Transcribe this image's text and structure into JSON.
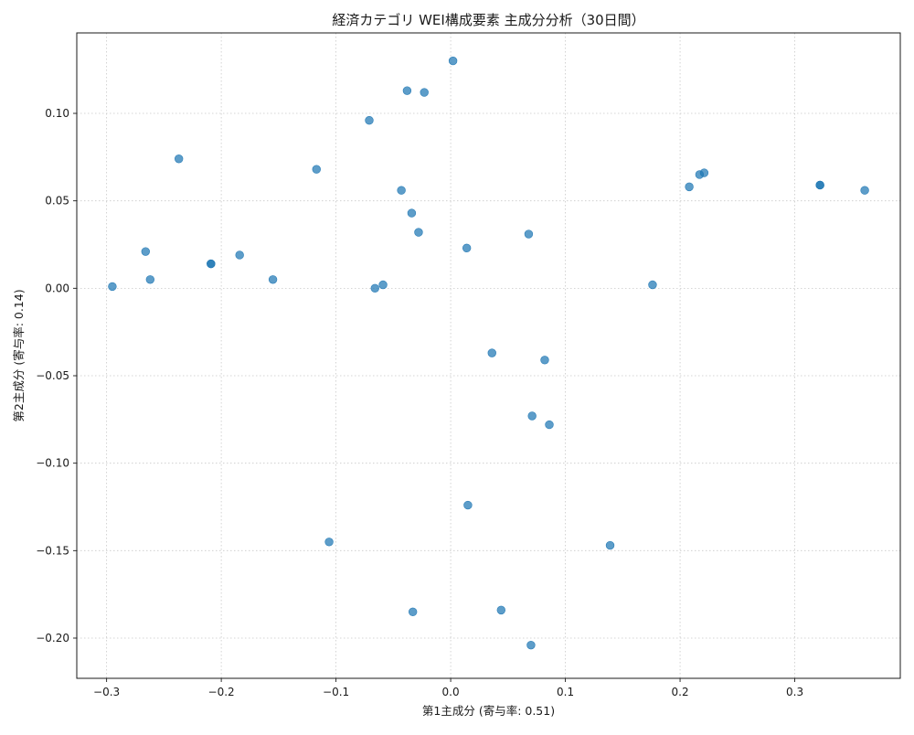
{
  "chart_data": {
    "type": "scatter",
    "title": "経済カテゴリ WEI構成要素 主成分分析（30日間）",
    "xlabel": "第1主成分 (寄与率: 0.51)",
    "ylabel": "第2主成分 (寄与率: 0.14)",
    "xlim": [
      -0.326,
      0.392
    ],
    "ylim": [
      -0.223,
      0.146
    ],
    "xticks": [
      -0.3,
      -0.2,
      -0.1,
      0.0,
      0.1,
      0.2,
      0.3
    ],
    "xtick_labels": [
      "−0.3",
      "−0.2",
      "−0.1",
      "0.0",
      "0.1",
      "0.2",
      "0.3"
    ],
    "yticks": [
      -0.2,
      -0.15,
      -0.1,
      -0.05,
      0.0,
      0.05,
      0.1
    ],
    "ytick_labels": [
      "−0.20",
      "−0.15",
      "−0.10",
      "−0.05",
      "0.00",
      "0.05",
      "0.10"
    ],
    "grid": true,
    "point_color": "#1f77b4",
    "points": [
      {
        "x": 0.002,
        "y": 0.13
      },
      {
        "x": -0.038,
        "y": 0.113
      },
      {
        "x": -0.023,
        "y": 0.112
      },
      {
        "x": -0.071,
        "y": 0.096
      },
      {
        "x": -0.237,
        "y": 0.074
      },
      {
        "x": -0.117,
        "y": 0.068
      },
      {
        "x": -0.043,
        "y": 0.056
      },
      {
        "x": -0.034,
        "y": 0.043
      },
      {
        "x": -0.028,
        "y": 0.032
      },
      {
        "x": 0.014,
        "y": 0.023
      },
      {
        "x": 0.068,
        "y": 0.031
      },
      {
        "x": 0.221,
        "y": 0.066
      },
      {
        "x": 0.217,
        "y": 0.065
      },
      {
        "x": 0.208,
        "y": 0.058
      },
      {
        "x": 0.322,
        "y": 0.059
      },
      {
        "x": 0.322,
        "y": 0.059
      },
      {
        "x": 0.361,
        "y": 0.056
      },
      {
        "x": -0.266,
        "y": 0.021
      },
      {
        "x": -0.209,
        "y": 0.014
      },
      {
        "x": -0.209,
        "y": 0.014
      },
      {
        "x": -0.184,
        "y": 0.019
      },
      {
        "x": -0.262,
        "y": 0.005
      },
      {
        "x": -0.155,
        "y": 0.005
      },
      {
        "x": -0.295,
        "y": 0.001
      },
      {
        "x": -0.066,
        "y": 0.0
      },
      {
        "x": -0.059,
        "y": 0.002
      },
      {
        "x": 0.176,
        "y": 0.002
      },
      {
        "x": 0.036,
        "y": -0.037
      },
      {
        "x": 0.082,
        "y": -0.041
      },
      {
        "x": 0.071,
        "y": -0.073
      },
      {
        "x": 0.086,
        "y": -0.078
      },
      {
        "x": 0.015,
        "y": -0.124
      },
      {
        "x": -0.106,
        "y": -0.145
      },
      {
        "x": 0.139,
        "y": -0.147
      },
      {
        "x": -0.033,
        "y": -0.185
      },
      {
        "x": 0.044,
        "y": -0.184
      },
      {
        "x": 0.07,
        "y": -0.204
      }
    ]
  }
}
